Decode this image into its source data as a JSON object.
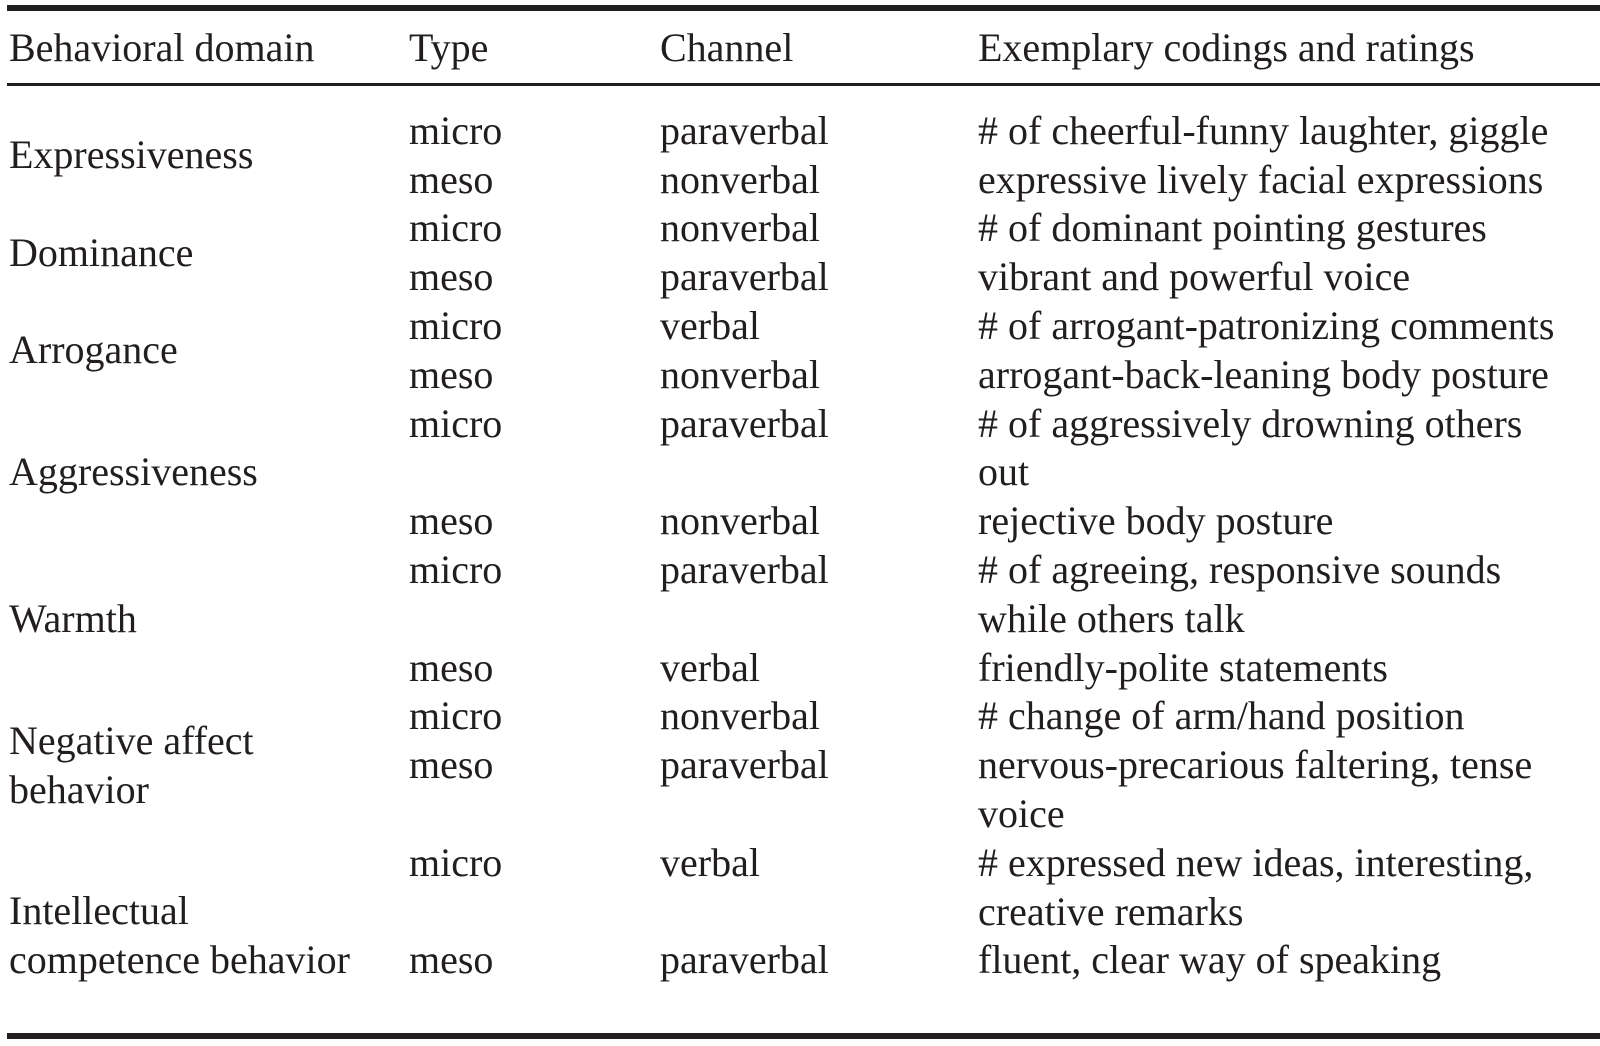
{
  "colors": {
    "background": "#ffffff",
    "text": "#221e1f",
    "rule": "#221e1f"
  },
  "table": {
    "columns": [
      "Behavioral domain",
      "Type",
      "Channel",
      "Exemplary codings and ratings"
    ],
    "rows": [
      {
        "domain": "Expressiveness",
        "entries": [
          {
            "type": "micro",
            "channel": "paraverbal",
            "example": "# of cheerful-funny laughter, giggle"
          },
          {
            "type": "meso",
            "channel": "nonverbal",
            "example": "expressive lively facial expressions"
          }
        ]
      },
      {
        "domain": "Dominance",
        "entries": [
          {
            "type": "micro",
            "channel": "nonverbal",
            "example": "# of dominant pointing gestures"
          },
          {
            "type": "meso",
            "channel": "paraverbal",
            "example": "vibrant and powerful voice"
          }
        ]
      },
      {
        "domain": "Arrogance",
        "entries": [
          {
            "type": "micro",
            "channel": "verbal",
            "example": "# of arrogant-patronizing comments"
          },
          {
            "type": "meso",
            "channel": "nonverbal",
            "example": "arrogant-back-leaning body posture"
          }
        ]
      },
      {
        "domain": "Aggressiveness",
        "entries": [
          {
            "type": "micro",
            "channel": "paraverbal",
            "example": "# of aggressively drowning others out"
          },
          {
            "type": "meso",
            "channel": "nonverbal",
            "example": "rejective body posture"
          }
        ]
      },
      {
        "domain": "Warmth",
        "entries": [
          {
            "type": "micro",
            "channel": "paraverbal",
            "example": "# of agreeing, responsive sounds while others talk"
          },
          {
            "type": "meso",
            "channel": "verbal",
            "example": "friendly-polite statements"
          }
        ]
      },
      {
        "domain": "Negative affect behavior",
        "entries": [
          {
            "type": "micro",
            "channel": "nonverbal",
            "example": "# change of arm/hand position"
          },
          {
            "type": "meso",
            "channel": "paraverbal",
            "example": "nervous-precarious faltering, tense voice"
          }
        ]
      },
      {
        "domain": "Intellectual competence behavior",
        "entries": [
          {
            "type": "micro",
            "channel": "verbal",
            "example": "# expressed new ideas, interesting, creative remarks"
          },
          {
            "type": "meso",
            "channel": "paraverbal",
            "example": "fluent, clear way of speaking"
          }
        ]
      }
    ]
  }
}
